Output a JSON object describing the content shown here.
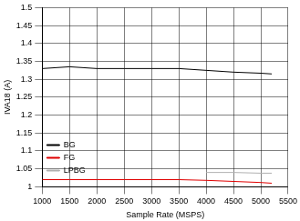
{
  "chart_data": {
    "type": "line",
    "x_label": "Sample Rate (MSPS)",
    "y_label": "IVA18 (A)",
    "x": [
      1000,
      1500,
      2000,
      2500,
      3000,
      3500,
      4000,
      4500,
      5000,
      5200
    ],
    "series": [
      {
        "name": "BG",
        "color": "#000000",
        "values": [
          1.33,
          1.335,
          1.33,
          1.33,
          1.33,
          1.33,
          1.325,
          1.32,
          1.317,
          1.315
        ]
      },
      {
        "name": "FG",
        "color": "#e00000",
        "values": [
          1.02,
          1.02,
          1.02,
          1.02,
          1.02,
          1.02,
          1.018,
          1.015,
          1.012,
          1.01
        ]
      },
      {
        "name": "LPBG",
        "color": "#b0b0b0",
        "values": [
          null,
          null,
          null,
          null,
          null,
          null,
          1.04,
          1.04,
          1.038,
          1.038
        ]
      }
    ],
    "xlim": [
      1000,
      5500
    ],
    "xticks": [
      1000,
      1500,
      2000,
      2500,
      3000,
      3500,
      4000,
      4500,
      5000,
      5500
    ],
    "ylim": [
      1,
      1.5
    ],
    "yticks": [
      1,
      1.05,
      1.1,
      1.15,
      1.2,
      1.25,
      1.3,
      1.35,
      1.4,
      1.45,
      1.5
    ],
    "grid": true,
    "legend": "top-right"
  }
}
